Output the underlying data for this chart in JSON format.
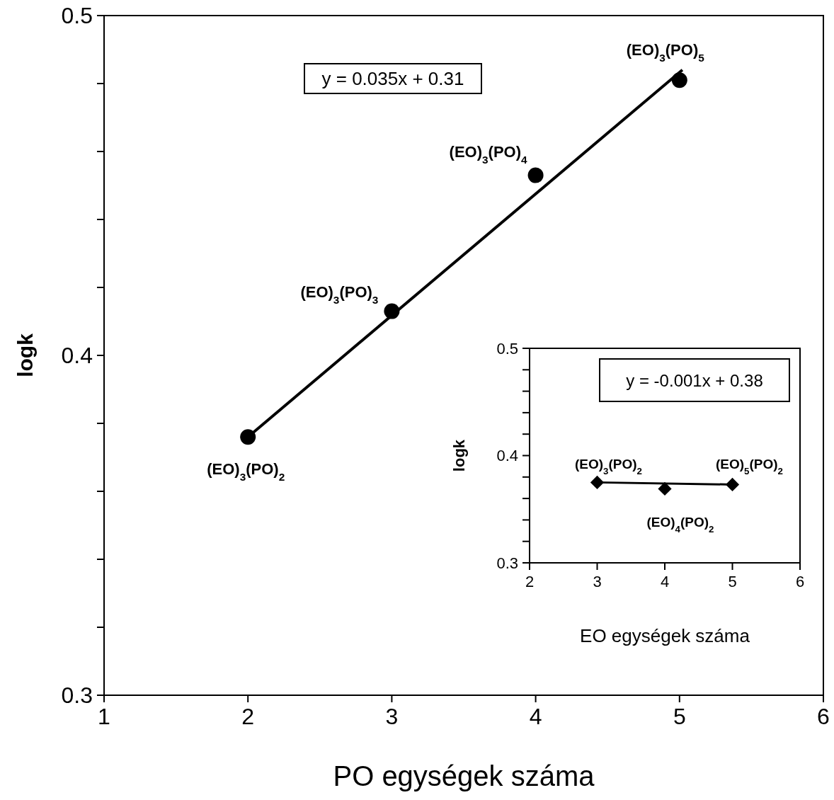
{
  "chart_data": [
    {
      "type": "scatter",
      "xlabel": "PO egységek száma",
      "ylabel": "logk",
      "xlim": [
        1,
        6
      ],
      "ylim": [
        0.3,
        0.5
      ],
      "xticks": [
        1,
        2,
        3,
        4,
        5,
        6
      ],
      "yticks": [
        0.3,
        {
          "value": 0.32,
          "label": null
        },
        {
          "value": 0.34,
          "label": null
        },
        {
          "value": 0.36,
          "label": null
        },
        {
          "value": 0.38,
          "label": null
        },
        0.4,
        {
          "value": 0.42,
          "label": null
        },
        {
          "value": 0.44,
          "label": null
        },
        {
          "value": 0.46,
          "label": null
        },
        {
          "value": 0.48,
          "label": null
        },
        0.5
      ],
      "series": [
        {
          "type": "scatter",
          "color": "#000000",
          "marker": "circle",
          "x": [
            2,
            3,
            4,
            5
          ],
          "values": [
            0.376,
            0.413,
            0.453,
            0.481
          ]
        },
        {
          "type": "line",
          "color": "#000000",
          "marker": "none",
          "line_style": "solid",
          "x": [
            2,
            5.02
          ],
          "values": [
            0.376,
            0.484
          ]
        }
      ],
      "annotations": [
        "y = 0.035x + 0.31",
        {
          "text": "(EO)$_{3}$(PO)$_{2}$",
          "x": 2,
          "y": 0.376
        },
        {
          "text": "(EO)$_{3}$(PO)$_{3}$",
          "x": 3,
          "y": 0.413
        },
        {
          "text": "(EO)$_{3}$(PO)$_{4}$",
          "x": 4,
          "y": 0.453
        },
        {
          "text": "(EO)$_{3}$(PO)$_{5}$",
          "x": 5,
          "y": 0.481
        }
      ]
    },
    {
      "type": "scatter",
      "xlabel": "EO egységek száma",
      "ylabel": "logk",
      "xlim": [
        2,
        6
      ],
      "ylim": [
        0.3,
        0.5
      ],
      "xticks": [
        2,
        3,
        4,
        5,
        6
      ],
      "yticks": [
        0.3,
        {
          "value": 0.32,
          "label": null
        },
        {
          "value": 0.34,
          "label": null
        },
        {
          "value": 0.36,
          "label": null
        },
        {
          "value": 0.38,
          "label": null
        },
        0.4,
        {
          "value": 0.42,
          "label": null
        },
        {
          "value": 0.44,
          "label": null
        },
        {
          "value": 0.46,
          "label": null
        },
        {
          "value": 0.48,
          "label": null
        },
        0.5
      ],
      "series": [
        {
          "type": "scatter",
          "color": "#000000",
          "marker": "diamond",
          "x": [
            3,
            4,
            5
          ],
          "values": [
            0.375,
            0.369,
            0.373
          ]
        },
        {
          "type": "line",
          "color": "#000000",
          "marker": "none",
          "line_style": "solid",
          "x": [
            3,
            5
          ],
          "values": [
            0.375,
            0.373
          ]
        }
      ],
      "annotations": [
        "y = -0.001x + 0.38",
        {
          "text": "(EO)$_{3}$(PO)$_{2}$",
          "x": 3,
          "y": 0.375
        },
        {
          "text": "(EO)$_{4}$(PO)$_{2}$",
          "x": 4,
          "y": 0.369
        },
        {
          "text": "(EO)$_{5}$(PO)$_{2}$",
          "x": 5,
          "y": 0.373
        }
      ]
    }
  ]
}
